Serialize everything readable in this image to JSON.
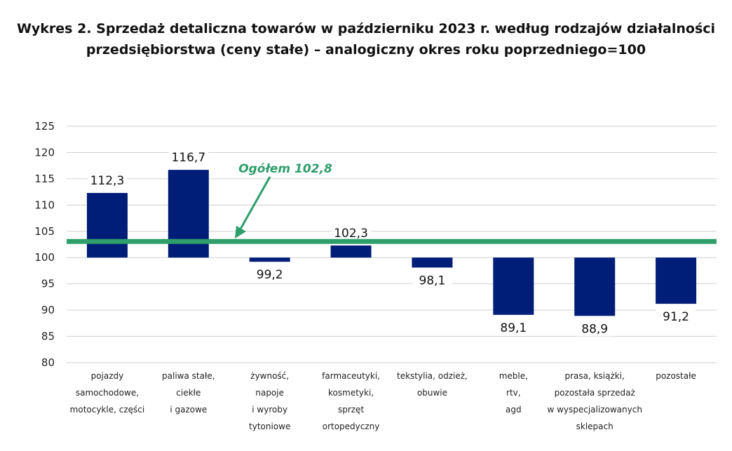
{
  "chart_data": {
    "type": "bar",
    "title_line1": "Wykres 2. Sprzedaż detaliczna towarów w październiku 2023 r. według rodzajów działalności",
    "title_line2": "przedsiębiorstwa (ceny stałe) – analogiczny okres roku poprzedniego=100",
    "baseline": 100,
    "ylim": [
      80,
      125
    ],
    "yticks": [
      80,
      85,
      90,
      95,
      100,
      105,
      110,
      115,
      120,
      125
    ],
    "grid": true,
    "categories": [
      [
        "pojazdy",
        "samochodowe,",
        "motocykle, części"
      ],
      [
        "paliwa stałe,",
        "ciekłe",
        "i gazowe"
      ],
      [
        "żywność,",
        "napoje",
        "i wyroby",
        "tytoniowe"
      ],
      [
        "farmaceutyki,",
        "kosmetyki,",
        "sprzęt",
        "ortopedyczny"
      ],
      [
        "tekstylia, odzież,",
        "obuwie"
      ],
      [
        "meble,",
        "rtv,",
        "agd"
      ],
      [
        "prasa, książki,",
        "pozostała sprzedaż",
        "w wyspecjalizowanych",
        "sklepach"
      ],
      [
        "pozostałe"
      ]
    ],
    "values": [
      112.3,
      116.7,
      99.2,
      102.3,
      98.1,
      89.1,
      88.9,
      91.2
    ],
    "value_labels": [
      "112,3",
      "116,7",
      "99,2",
      "102,3",
      "98,1",
      "89,1",
      "88,9",
      "91,2"
    ],
    "reference_line": {
      "value": 102.8,
      "label": "Ogółem 102,8"
    },
    "colors": {
      "bar": "#001D77",
      "reference": "#2E9E6A",
      "grid": "#D0D0D0"
    }
  }
}
